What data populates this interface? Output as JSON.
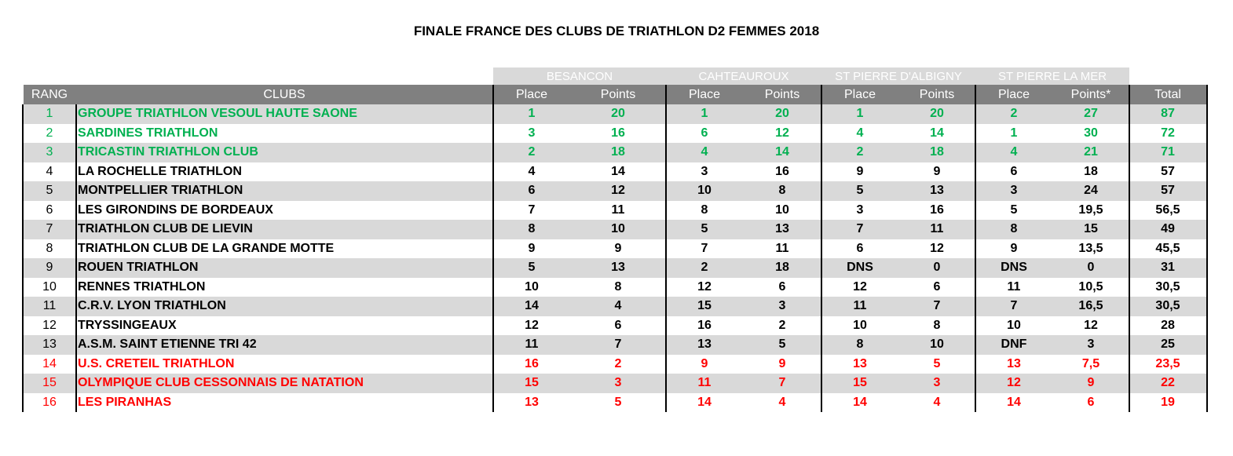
{
  "title": "FINALE FRANCE DES CLUBS DE TRIATHLON D2 FEMMES 2018",
  "colors": {
    "header_bg": "#808080",
    "venue_bg": "#d9d9d9",
    "row_shade": "#d9d9d9",
    "podium": "#00b050",
    "relegated": "#ff0000",
    "default": "#000000"
  },
  "venues": [
    "BESANCON",
    "CAHTEAUROUX",
    "ST PIERRE D'ALBIGNY",
    "ST PIERRE LA MER"
  ],
  "headers": [
    "RANG",
    "CLUBS",
    "Place",
    "Points",
    "Place",
    "Points",
    "Place",
    "Points",
    "Place",
    "Points*",
    "Total"
  ],
  "rows": [
    {
      "rang": "1",
      "club": "GROUPE TRIATHLON VESOUL HAUTE SAONE",
      "vals": [
        "1",
        "20",
        "1",
        "20",
        "1",
        "20",
        "2",
        "27"
      ],
      "total": "87",
      "status": "podium"
    },
    {
      "rang": "2",
      "club": "SARDINES TRIATHLON",
      "vals": [
        "3",
        "16",
        "6",
        "12",
        "4",
        "14",
        "1",
        "30"
      ],
      "total": "72",
      "status": "podium"
    },
    {
      "rang": "3",
      "club": "TRICASTIN TRIATHLON CLUB",
      "vals": [
        "2",
        "18",
        "4",
        "14",
        "2",
        "18",
        "4",
        "21"
      ],
      "total": "71",
      "status": "podium"
    },
    {
      "rang": "4",
      "club": "LA ROCHELLE TRIATHLON",
      "vals": [
        "4",
        "14",
        "3",
        "16",
        "9",
        "9",
        "6",
        "18"
      ],
      "total": "57",
      "status": "normal"
    },
    {
      "rang": "5",
      "club": "MONTPELLIER TRIATHLON",
      "vals": [
        "6",
        "12",
        "10",
        "8",
        "5",
        "13",
        "3",
        "24"
      ],
      "total": "57",
      "status": "normal"
    },
    {
      "rang": "6",
      "club": "LES GIRONDINS DE BORDEAUX",
      "vals": [
        "7",
        "11",
        "8",
        "10",
        "3",
        "16",
        "5",
        "19,5"
      ],
      "total": "56,5",
      "status": "normal"
    },
    {
      "rang": "7",
      "club": "TRIATHLON CLUB DE LIEVIN",
      "vals": [
        "8",
        "10",
        "5",
        "13",
        "7",
        "11",
        "8",
        "15"
      ],
      "total": "49",
      "status": "normal"
    },
    {
      "rang": "8",
      "club": "TRIATHLON CLUB DE LA GRANDE MOTTE",
      "vals": [
        "9",
        "9",
        "7",
        "11",
        "6",
        "12",
        "9",
        "13,5"
      ],
      "total": "45,5",
      "status": "normal"
    },
    {
      "rang": "9",
      "club": "ROUEN TRIATHLON",
      "vals": [
        "5",
        "13",
        "2",
        "18",
        "DNS",
        "0",
        "DNS",
        "0"
      ],
      "total": "31",
      "status": "normal"
    },
    {
      "rang": "10",
      "club": "RENNES TRIATHLON",
      "vals": [
        "10",
        "8",
        "12",
        "6",
        "12",
        "6",
        "11",
        "10,5"
      ],
      "total": "30,5",
      "status": "normal"
    },
    {
      "rang": "11",
      "club": "C.R.V. LYON TRIATHLON",
      "vals": [
        "14",
        "4",
        "15",
        "3",
        "11",
        "7",
        "7",
        "16,5"
      ],
      "total": "30,5",
      "status": "normal"
    },
    {
      "rang": "12",
      "club": "TRYSSINGEAUX",
      "vals": [
        "12",
        "6",
        "16",
        "2",
        "10",
        "8",
        "10",
        "12"
      ],
      "total": "28",
      "status": "normal"
    },
    {
      "rang": "13",
      "club": "A.S.M. SAINT ETIENNE TRI 42",
      "vals": [
        "11",
        "7",
        "13",
        "5",
        "8",
        "10",
        "DNF",
        "3"
      ],
      "total": "25",
      "status": "normal"
    },
    {
      "rang": "14",
      "club": "U.S. CRETEIL TRIATHLON",
      "vals": [
        "16",
        "2",
        "9",
        "9",
        "13",
        "5",
        "13",
        "7,5"
      ],
      "total": "23,5",
      "status": "relegated"
    },
    {
      "rang": "15",
      "club": "OLYMPIQUE CLUB CESSONNAIS DE NATATION",
      "vals": [
        "15",
        "3",
        "11",
        "7",
        "15",
        "3",
        "12",
        "9"
      ],
      "total": "22",
      "status": "relegated"
    },
    {
      "rang": "16",
      "club": "LES PIRANHAS",
      "vals": [
        "13",
        "5",
        "14",
        "4",
        "14",
        "4",
        "14",
        "6"
      ],
      "total": "19",
      "status": "relegated"
    }
  ]
}
